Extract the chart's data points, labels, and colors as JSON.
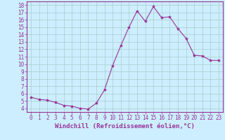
{
  "x": [
    0,
    1,
    2,
    3,
    4,
    5,
    6,
    7,
    8,
    9,
    10,
    11,
    12,
    13,
    14,
    15,
    16,
    17,
    18,
    19,
    20,
    21,
    22,
    23
  ],
  "y": [
    5.5,
    5.2,
    5.1,
    4.8,
    4.4,
    4.3,
    4.0,
    3.9,
    4.7,
    6.5,
    9.8,
    12.5,
    15.0,
    17.2,
    15.8,
    17.8,
    16.3,
    16.4,
    14.8,
    13.5,
    11.2,
    11.1,
    10.5,
    10.5
  ],
  "line_color": "#993399",
  "marker": "*",
  "marker_size": 3,
  "xlabel": "Windchill (Refroidissement éolien,°C)",
  "xlim": [
    -0.5,
    23.5
  ],
  "ylim": [
    3.5,
    18.5
  ],
  "yticks": [
    4,
    5,
    6,
    7,
    8,
    9,
    10,
    11,
    12,
    13,
    14,
    15,
    16,
    17,
    18
  ],
  "xticks": [
    0,
    1,
    2,
    3,
    4,
    5,
    6,
    7,
    8,
    9,
    10,
    11,
    12,
    13,
    14,
    15,
    16,
    17,
    18,
    19,
    20,
    21,
    22,
    23
  ],
  "bg_color": "#cceeff",
  "grid_color": "#aacccc",
  "axis_label_color": "#993399",
  "tick_label_color": "#993399",
  "xlabel_fontsize": 6.5,
  "tick_fontsize": 5.5,
  "spine_color": "#993399"
}
